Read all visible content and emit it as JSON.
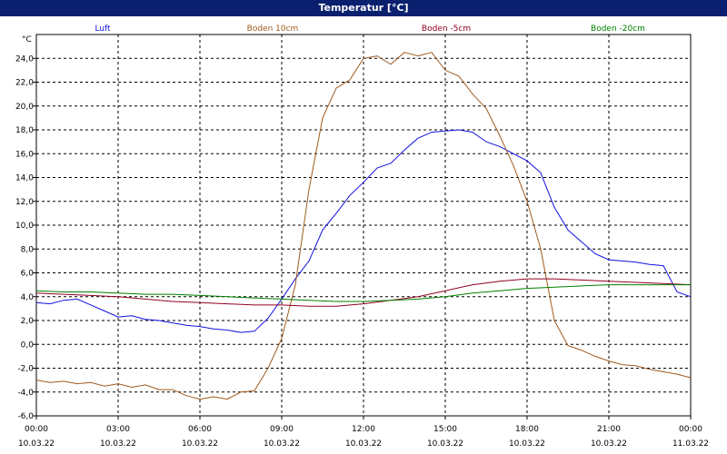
{
  "window": {
    "title": "Temperatur [°C]"
  },
  "chart_data": {
    "type": "line",
    "ylabel": "°C",
    "ylim": [
      -6,
      26
    ],
    "yticks": [
      "-6,0",
      "-4,0",
      "-2,0",
      "0,0",
      "2,0",
      "4,0",
      "6,0",
      "8,0",
      "10,0",
      "12,0",
      "14,0",
      "16,0",
      "18,0",
      "20,0",
      "22,0",
      "24,0"
    ],
    "xlim": [
      0,
      24
    ],
    "xticks": [
      {
        "time": "00:00",
        "date": "10.03.22"
      },
      {
        "time": "03:00",
        "date": "10.03.22"
      },
      {
        "time": "06:00",
        "date": "10.03.22"
      },
      {
        "time": "09:00",
        "date": "10.03.22"
      },
      {
        "time": "12:00",
        "date": "10.03.22"
      },
      {
        "time": "15:00",
        "date": "10.03.22"
      },
      {
        "time": "18:00",
        "date": "10.03.22"
      },
      {
        "time": "21:00",
        "date": "10.03.22"
      },
      {
        "time": "00:00",
        "date": "11.03.22"
      }
    ],
    "grid": true,
    "legend_position": "top",
    "series": [
      {
        "name": "Luft",
        "color": "#1010e0",
        "x": [
          0,
          0.5,
          1,
          1.5,
          2,
          2.5,
          3,
          3.5,
          4,
          4.5,
          5,
          5.5,
          6,
          6.5,
          7,
          7.5,
          8,
          8.5,
          9,
          9.5,
          10,
          10.5,
          11,
          11.5,
          12,
          12.5,
          13,
          13.5,
          14,
          14.5,
          15,
          15.5,
          16,
          16.5,
          17,
          17.5,
          18,
          18.5,
          19,
          19.5,
          20,
          20.5,
          21,
          21.5,
          22,
          22.5,
          23,
          23.5,
          24
        ],
        "values": [
          3.5,
          3.4,
          3.7,
          3.8,
          3.3,
          2.8,
          2.3,
          2.4,
          2.1,
          2.0,
          1.8,
          1.6,
          1.5,
          1.3,
          1.2,
          1.0,
          1.1,
          2.2,
          3.8,
          5.5,
          7.0,
          9.6,
          11.0,
          12.5,
          13.6,
          14.8,
          15.2,
          16.3,
          17.3,
          17.8,
          17.9,
          18.0,
          17.8,
          17.0,
          16.6,
          16.0,
          15.4,
          14.4,
          11.5,
          9.6,
          8.6,
          7.6,
          7.1,
          7.0,
          6.9,
          6.7,
          6.6,
          4.4,
          4.0
        ]
      },
      {
        "name": "Boden 10cm",
        "color": "#a05a1e",
        "x": [
          0,
          0.5,
          1,
          1.5,
          2,
          2.5,
          3,
          3.5,
          4,
          4.5,
          5,
          5.5,
          6,
          6.5,
          7,
          7.5,
          8,
          8.5,
          9,
          9.5,
          10,
          10.5,
          11,
          11.5,
          12,
          12.5,
          13,
          13.5,
          14,
          14.5,
          15,
          15.5,
          16,
          16.5,
          17,
          17.5,
          18,
          18.5,
          19,
          19.5,
          20,
          20.5,
          21,
          21.5,
          22,
          22.5,
          23,
          23.5,
          24
        ],
        "values": [
          -3.0,
          -3.2,
          -3.1,
          -3.3,
          -3.2,
          -3.5,
          -3.3,
          -3.6,
          -3.4,
          -3.8,
          -3.8,
          -4.3,
          -4.6,
          -4.4,
          -4.6,
          -4.0,
          -3.9,
          -2.0,
          0.5,
          5.0,
          13.0,
          19.0,
          21.5,
          22.2,
          24.0,
          24.2,
          23.5,
          24.5,
          24.2,
          24.5,
          23.0,
          22.5,
          21.0,
          19.8,
          17.5,
          15.0,
          12.0,
          8.0,
          2.0,
          -0.1,
          -0.5,
          -1.0,
          -1.4,
          -1.7,
          -1.8,
          -2.1,
          -2.3,
          -2.5,
          -2.8
        ]
      },
      {
        "name": "Boden -5cm",
        "color": "#900020",
        "x": [
          0,
          1,
          2,
          3,
          4,
          5,
          6,
          7,
          8,
          9,
          10,
          11,
          12,
          13,
          14,
          15,
          16,
          17,
          18,
          19,
          20,
          21,
          22,
          23,
          24
        ],
        "values": [
          4.3,
          4.2,
          4.1,
          4.0,
          3.8,
          3.6,
          3.5,
          3.4,
          3.3,
          3.3,
          3.2,
          3.2,
          3.4,
          3.7,
          4.0,
          4.5,
          5.0,
          5.3,
          5.5,
          5.5,
          5.4,
          5.3,
          5.2,
          5.1,
          5.0
        ]
      },
      {
        "name": "Boden -20cm",
        "color": "#008000",
        "x": [
          0,
          1,
          2,
          3,
          4,
          5,
          6,
          7,
          8,
          9,
          10,
          11,
          12,
          13,
          14,
          15,
          16,
          17,
          18,
          19,
          20,
          21,
          22,
          23,
          24
        ],
        "values": [
          4.5,
          4.4,
          4.4,
          4.3,
          4.2,
          4.2,
          4.1,
          4.0,
          3.9,
          3.8,
          3.7,
          3.6,
          3.6,
          3.7,
          3.8,
          4.0,
          4.3,
          4.5,
          4.7,
          4.8,
          4.9,
          5.0,
          5.0,
          5.0,
          5.0
        ]
      }
    ]
  }
}
